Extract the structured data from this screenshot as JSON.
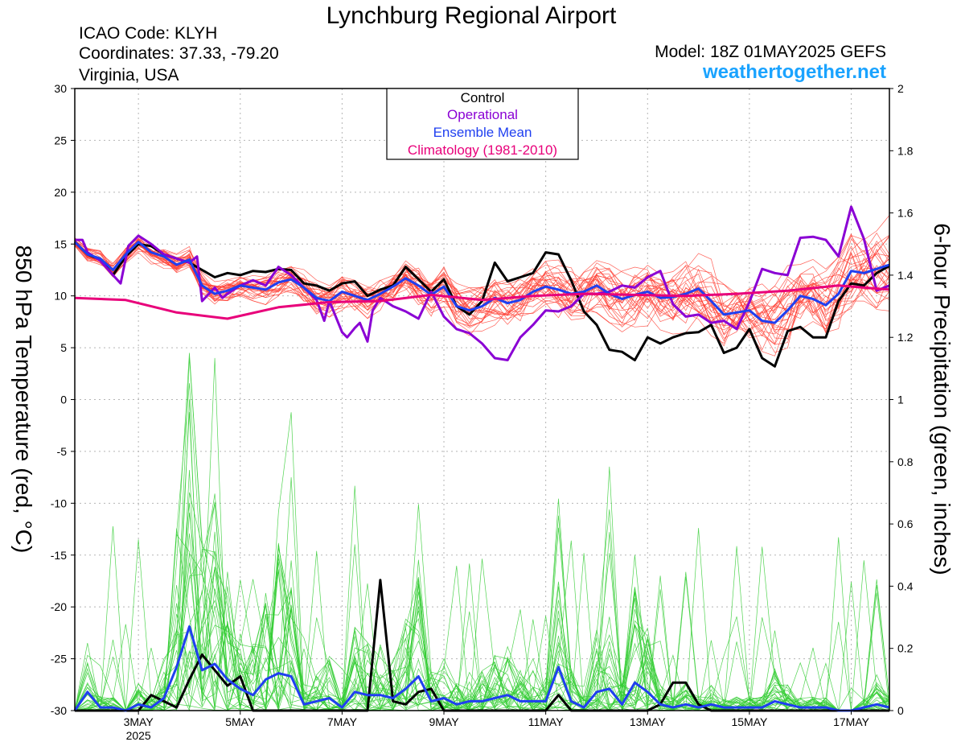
{
  "header": {
    "title": "Lynchburg Regional Airport",
    "icao": "ICAO Code: KLYH",
    "coords": "Coordinates: 37.33, -79.20",
    "region": "Virginia, USA",
    "model": "Model: 18Z 01MAY2025 GEFS",
    "site": "weathertogether.net"
  },
  "colors": {
    "members_temp": "#ff3b30",
    "members_precip": "#33cc33",
    "control": "#000000",
    "operational": "#8a00d4",
    "mean": "#1f3ff0",
    "climatology": "#e8007a",
    "site": "#1aa3ff"
  },
  "chart_data": {
    "type": "line",
    "title": "Lynchburg Regional Airport",
    "ylabel_left": "850 hPa Temperature (red, °C)",
    "ylabel_right": "6-hour Precipitation (green, inches)",
    "ylim_left": [
      -30,
      30
    ],
    "ylim_right": [
      0,
      2
    ],
    "yticks_left": [
      "30",
      "25",
      "20",
      "15",
      "10",
      "5",
      "0",
      "-5",
      "-10",
      "-15",
      "-20",
      "-25",
      "-30"
    ],
    "yticks_right": [
      "2",
      "1.8",
      "1.6",
      "1.4",
      "1.2",
      "1",
      "0.8",
      "0.6",
      "0.4",
      "0.2",
      "0"
    ],
    "xticks": [
      {
        "day": 3,
        "label": "3MAY",
        "sub": "2025"
      },
      {
        "day": 5,
        "label": "5MAY",
        "sub": ""
      },
      {
        "day": 7,
        "label": "7MAY",
        "sub": ""
      },
      {
        "day": 9,
        "label": "9MAY",
        "sub": ""
      },
      {
        "day": 11,
        "label": "11MAY",
        "sub": ""
      },
      {
        "day": 13,
        "label": "13MAY",
        "sub": ""
      },
      {
        "day": 15,
        "label": "15MAY",
        "sub": ""
      },
      {
        "day": 17,
        "label": "17MAY",
        "sub": ""
      }
    ],
    "xrange_days": [
      1.75,
      17.75
    ],
    "legend": {
      "placement": "top-center",
      "entries": [
        {
          "label": "Control",
          "color": "#000000"
        },
        {
          "label": "Operational",
          "color": "#8a00d4"
        },
        {
          "label": "Ensemble Mean",
          "color": "#1f3ff0"
        },
        {
          "label": "Climatology (1981-2010)",
          "color": "#e8007a"
        }
      ]
    },
    "grid": true,
    "series": [
      {
        "name": "Control",
        "axis": "left",
        "x": [
          1.75,
          2.0,
          2.25,
          2.5,
          2.75,
          3.0,
          3.25,
          3.5,
          3.75,
          4.0,
          4.25,
          4.5,
          4.75,
          5.0,
          5.25,
          5.5,
          5.75,
          6.0,
          6.25,
          6.5,
          6.75,
          7.0,
          7.25,
          7.5,
          7.75,
          8.0,
          8.25,
          8.5,
          8.75,
          9.0,
          9.25,
          9.5,
          9.75,
          10.0,
          10.25,
          10.5,
          10.75,
          11.0,
          11.25,
          11.5,
          11.75,
          12.0,
          12.25,
          12.5,
          12.75,
          13.0,
          13.25,
          13.5,
          13.75,
          14.0,
          14.25,
          14.5,
          14.75,
          15.0,
          15.25,
          15.5,
          15.75,
          16.0,
          16.25,
          16.5,
          16.75,
          17.0,
          17.25,
          17.5,
          17.75
        ],
        "values": [
          15.2,
          14.0,
          13.5,
          12.0,
          13.8,
          15.0,
          14.8,
          14.0,
          13.6,
          13.2,
          12.5,
          11.8,
          12.2,
          12.0,
          12.4,
          12.3,
          12.6,
          12.5,
          11.2,
          11.0,
          10.5,
          11.2,
          11.4,
          10.0,
          10.6,
          11.0,
          12.8,
          11.6,
          10.4,
          11.6,
          9.0,
          8.2,
          9.5,
          13.2,
          11.4,
          11.8,
          12.2,
          14.2,
          14.0,
          11.5,
          8.5,
          7.2,
          4.8,
          4.6,
          3.8,
          6.0,
          5.4,
          6.0,
          6.4,
          6.5,
          7.2,
          4.5,
          5.0,
          6.8,
          4.0,
          3.2,
          6.6,
          7.0,
          6.0,
          6.0,
          9.5,
          11.2,
          11.0,
          12.2,
          12.9
        ]
      },
      {
        "name": "Operational",
        "axis": "left",
        "x": [
          1.75,
          1.9,
          2.0,
          2.25,
          2.5,
          2.65,
          2.8,
          3.0,
          3.25,
          3.5,
          3.75,
          4.0,
          4.15,
          4.25,
          4.5,
          4.65,
          4.75,
          5.0,
          5.25,
          5.5,
          5.75,
          6.0,
          6.25,
          6.5,
          6.65,
          6.75,
          7.0,
          7.1,
          7.25,
          7.35,
          7.5,
          7.6,
          7.75,
          8.0,
          8.25,
          8.5,
          8.75,
          9.0,
          9.25,
          9.5,
          9.75,
          10.0,
          10.25,
          10.5,
          10.75,
          11.0,
          11.25,
          11.5,
          11.75,
          12.0,
          12.25,
          12.5,
          12.75,
          13.0,
          13.25,
          13.5,
          13.75,
          14.0,
          14.25,
          14.5,
          14.75,
          15.0,
          15.25,
          15.5,
          15.75,
          16.0,
          16.25,
          16.5,
          16.75,
          17.0,
          17.25,
          17.5,
          17.75
        ],
        "values": [
          15.4,
          15.4,
          14.2,
          13.4,
          12.0,
          11.2,
          14.8,
          15.8,
          15.0,
          14.0,
          13.6,
          13.2,
          13.8,
          9.5,
          10.8,
          9.8,
          10.2,
          11.0,
          11.5,
          11.0,
          12.8,
          12.0,
          10.8,
          9.6,
          7.6,
          9.5,
          6.5,
          6.0,
          6.9,
          7.4,
          5.6,
          8.6,
          9.8,
          9.0,
          8.5,
          7.8,
          10.4,
          8.0,
          6.8,
          6.4,
          5.4,
          4.0,
          3.8,
          6.0,
          7.2,
          8.6,
          8.5,
          9.0,
          10.2,
          10.2,
          10.4,
          11.0,
          10.8,
          11.8,
          12.4,
          9.2,
          8.0,
          8.2,
          7.4,
          7.6,
          6.8,
          9.4,
          12.6,
          12.2,
          12.0,
          15.6,
          15.7,
          15.4,
          13.8,
          18.6,
          15.5,
          10.5,
          11.0
        ]
      },
      {
        "name": "Ensemble Mean",
        "axis": "left",
        "x": [
          1.75,
          2.0,
          2.25,
          2.5,
          2.75,
          3.0,
          3.25,
          3.5,
          3.75,
          4.0,
          4.25,
          4.5,
          4.75,
          5.0,
          5.25,
          5.5,
          5.75,
          6.0,
          6.25,
          6.5,
          6.75,
          7.0,
          7.25,
          7.5,
          7.75,
          8.0,
          8.25,
          8.5,
          8.75,
          9.0,
          9.25,
          9.5,
          9.75,
          10.0,
          10.25,
          10.5,
          10.75,
          11.0,
          11.25,
          11.5,
          11.75,
          12.0,
          12.25,
          12.5,
          12.75,
          13.0,
          13.25,
          13.5,
          13.75,
          14.0,
          14.25,
          14.5,
          14.75,
          15.0,
          15.25,
          15.5,
          15.75,
          16.0,
          16.25,
          16.5,
          16.75,
          17.0,
          17.25,
          17.5,
          17.75
        ],
        "values": [
          15.2,
          14.0,
          13.6,
          12.5,
          14.0,
          15.2,
          14.2,
          13.8,
          13.0,
          13.5,
          11.0,
          10.2,
          10.5,
          11.0,
          10.8,
          10.6,
          11.3,
          11.6,
          10.8,
          9.8,
          9.5,
          10.4,
          10.0,
          9.6,
          10.2,
          10.9,
          11.7,
          11.0,
          10.1,
          10.9,
          9.0,
          8.6,
          9.0,
          9.8,
          9.3,
          9.6,
          10.4,
          10.9,
          10.6,
          10.2,
          10.4,
          11.0,
          10.2,
          9.7,
          10.1,
          10.4,
          9.8,
          9.9,
          10.2,
          10.7,
          9.5,
          8.2,
          8.4,
          8.6,
          7.6,
          7.4,
          8.6,
          10.0,
          9.7,
          9.1,
          10.2,
          12.4,
          12.2,
          12.6,
          13.0
        ]
      },
      {
        "name": "Climatology (1981-2010)",
        "axis": "left",
        "x": [
          1.75,
          2.75,
          3.75,
          4.75,
          5.75,
          6.75,
          7.75,
          8.75,
          9.75,
          10.75,
          11.75,
          12.75,
          13.75,
          14.75,
          15.75,
          16.75,
          17.75
        ],
        "values": [
          9.8,
          9.6,
          8.4,
          7.8,
          8.9,
          9.4,
          9.5,
          10.1,
          9.6,
          10.0,
          10.2,
          10.1,
          10.0,
          10.2,
          10.5,
          11.0,
          10.6
        ]
      },
      {
        "name": "Control",
        "axis": "right",
        "x": [
          1.75,
          2.0,
          2.25,
          2.5,
          2.75,
          3.0,
          3.25,
          3.5,
          3.75,
          4.0,
          4.25,
          4.5,
          4.75,
          5.0,
          5.25,
          5.5,
          5.75,
          6.0,
          6.25,
          6.5,
          6.75,
          7.0,
          7.25,
          7.5,
          7.75,
          8.0,
          8.25,
          8.5,
          8.75,
          9.0,
          9.25,
          9.5,
          9.75,
          10.0,
          10.25,
          10.5,
          10.75,
          11.0,
          11.25,
          11.5,
          11.75,
          12.0,
          12.25,
          12.5,
          12.75,
          13.0,
          13.25,
          13.5,
          13.75,
          14.0,
          14.25,
          14.5,
          14.75,
          15.0,
          15.25,
          15.5,
          15.75,
          16.0,
          16.25,
          16.5,
          16.75,
          17.0,
          17.25,
          17.5,
          17.75
        ],
        "values": [
          0,
          0,
          0,
          0,
          0,
          0,
          0.05,
          0.03,
          0.01,
          0.1,
          0.18,
          0.13,
          0.08,
          0.11,
          0,
          0,
          0,
          0,
          0,
          0,
          0,
          0,
          0,
          0,
          0.42,
          0.03,
          0.02,
          0.06,
          0.07,
          0,
          0,
          0,
          0,
          0,
          0,
          0,
          0,
          0,
          0.05,
          0,
          0,
          0,
          0,
          0,
          0,
          0,
          0.02,
          0.09,
          0.09,
          0.02,
          0,
          0,
          0,
          0,
          0,
          0,
          0,
          0,
          0,
          0,
          0,
          0,
          0,
          0,
          0
        ]
      },
      {
        "name": "Ensemble Mean",
        "axis": "right",
        "x": [
          1.75,
          2.0,
          2.25,
          2.5,
          2.75,
          3.0,
          3.25,
          3.5,
          3.75,
          4.0,
          4.25,
          4.5,
          4.75,
          5.0,
          5.25,
          5.5,
          5.75,
          6.0,
          6.25,
          6.5,
          6.75,
          7.0,
          7.25,
          7.5,
          7.75,
          8.0,
          8.25,
          8.5,
          8.75,
          9.0,
          9.25,
          9.5,
          9.75,
          10.0,
          10.25,
          10.5,
          10.75,
          11.0,
          11.25,
          11.5,
          11.75,
          12.0,
          12.25,
          12.5,
          12.75,
          13.0,
          13.25,
          13.5,
          13.75,
          14.0,
          14.25,
          14.5,
          14.75,
          15.0,
          15.25,
          15.5,
          15.75,
          16.0,
          16.25,
          16.5,
          16.75,
          17.0,
          17.25,
          17.5,
          17.75
        ],
        "values": [
          0,
          0.06,
          0.01,
          0.01,
          0,
          0.02,
          0.01,
          0.04,
          0.14,
          0.27,
          0.13,
          0.15,
          0.1,
          0.07,
          0.05,
          0.1,
          0.12,
          0.11,
          0.02,
          0.03,
          0.04,
          0.01,
          0.06,
          0.05,
          0.05,
          0.04,
          0.07,
          0.11,
          0.03,
          0.04,
          0.02,
          0.03,
          0.03,
          0.04,
          0.05,
          0.03,
          0.03,
          0.03,
          0.14,
          0.03,
          0.01,
          0.06,
          0.07,
          0.02,
          0.09,
          0.06,
          0.02,
          0.01,
          0.02,
          0.01,
          0.02,
          0.01,
          0.01,
          0.01,
          0.01,
          0.03,
          0.02,
          0.01,
          0.01,
          0.01,
          0,
          0,
          0.01,
          0.02,
          0.01
        ]
      }
    ]
  }
}
